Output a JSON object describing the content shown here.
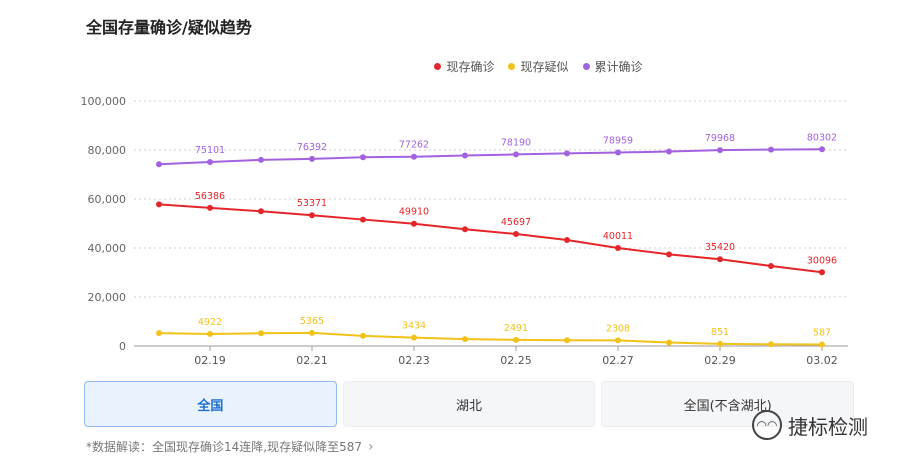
{
  "header": {
    "title": "全国存量确诊/疑似趋势"
  },
  "legend": [
    {
      "label": "现存确诊",
      "color": "#e4262a"
    },
    {
      "label": "现存疑似",
      "color": "#f2c218"
    },
    {
      "label": "累计确诊",
      "color": "#a262e0"
    }
  ],
  "chart_data": {
    "type": "line",
    "title": "全国存量确诊/疑似趋势",
    "x": [
      "02.18",
      "02.19",
      "02.20",
      "02.21",
      "02.22",
      "02.23",
      "02.24",
      "02.25",
      "02.26",
      "02.27",
      "02.28",
      "02.29",
      "03.01",
      "03.02"
    ],
    "x_tick_labels": [
      "02.19",
      "02.21",
      "02.23",
      "02.25",
      "02.27",
      "02.29",
      "03.02"
    ],
    "ylim": [
      0,
      100000
    ],
    "y_ticks": [
      "0",
      "20,000",
      "40,000",
      "60,000",
      "80,000",
      "100,000"
    ],
    "grid": true,
    "legend_position": "top-center",
    "series": [
      {
        "name": "现存确诊",
        "color": "#e4262a",
        "values": [
          57805,
          56386,
          55000,
          53371,
          51606,
          49910,
          47672,
          45697,
          43258,
          40011,
          37414,
          35420,
          32652,
          30096
        ]
      },
      {
        "name": "现存疑似",
        "color": "#f2c218",
        "values": [
          5248,
          4922,
          5206,
          5365,
          4148,
          3434,
          2824,
          2491,
          2358,
          2308,
          1418,
          851,
          715,
          587
        ]
      },
      {
        "name": "累计确诊",
        "color": "#a262e0",
        "values": [
          74185,
          75101,
          75993,
          76392,
          77041,
          77262,
          77779,
          78190,
          78630,
          78959,
          79389,
          79968,
          80174,
          80302
        ]
      }
    ],
    "data_labels": {
      "现存确诊": [
        "56386",
        "53371",
        "49910",
        "45697",
        "40011",
        "35420",
        "30096"
      ],
      "现存疑似": [
        "4922",
        "5365",
        "3434",
        "2491",
        "2308",
        "851",
        "587"
      ],
      "累计确诊": [
        "75101",
        "76392",
        "77262",
        "78190",
        "78959",
        "79968",
        "80302"
      ]
    }
  },
  "tabs": [
    {
      "label": "全国",
      "active": true
    },
    {
      "label": "湖北",
      "active": false
    },
    {
      "label": "全国(不含湖北)",
      "active": false
    }
  ],
  "footnote": "*数据解读：全国现存确诊14连降,现存疑似降至587",
  "watermark": {
    "text": "捷标检测"
  }
}
